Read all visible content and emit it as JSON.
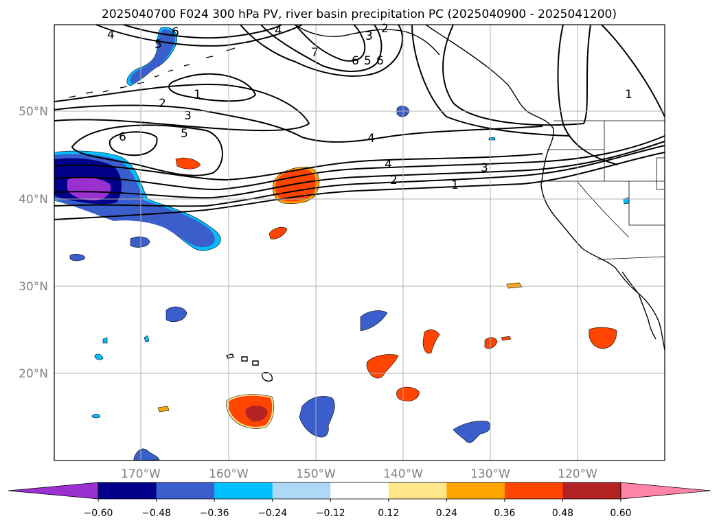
{
  "title": "2025040700 F024 300 hPa PV, river basin precipitation PC (2025040900 - 2025041200)",
  "lat_labels": [
    "50°N",
    "40°N",
    "30°N",
    "20°N"
  ],
  "lon_labels": [
    "170°W",
    "160°W",
    "150°W",
    "140°W",
    "130°W",
    "120°W"
  ],
  "contour_labels": [
    "4",
    "6",
    "5",
    "6",
    "3",
    "2",
    "1",
    "2",
    "3",
    "6",
    "5",
    "7",
    "6",
    "5",
    "4",
    "4",
    "4",
    "3",
    "2",
    "1",
    "1"
  ],
  "colorbar": {
    "tick_labels": [
      "−0.60",
      "−0.48",
      "−0.36",
      "−0.24",
      "−0.12",
      "0.12",
      "0.24",
      "0.36",
      "0.48",
      "0.60"
    ],
    "colors": [
      "#9b30d0",
      "#00008b",
      "#3a5fcd",
      "#00bfff",
      "#add8f6",
      "#ffffff",
      "#ffe68a",
      "#ffa500",
      "#ff4500",
      "#b22222",
      "#ff85a8"
    ]
  },
  "fill_colors": {
    "neg_strong": "#9b30d0",
    "neg_dark": "#00008b",
    "neg_mid": "#3a5fcd",
    "neg_light": "#00bfff",
    "pos_light": "#ffe68a",
    "pos_mid": "#ffa500",
    "pos_strong": "#ff4500",
    "pos_dark": "#b22222"
  }
}
